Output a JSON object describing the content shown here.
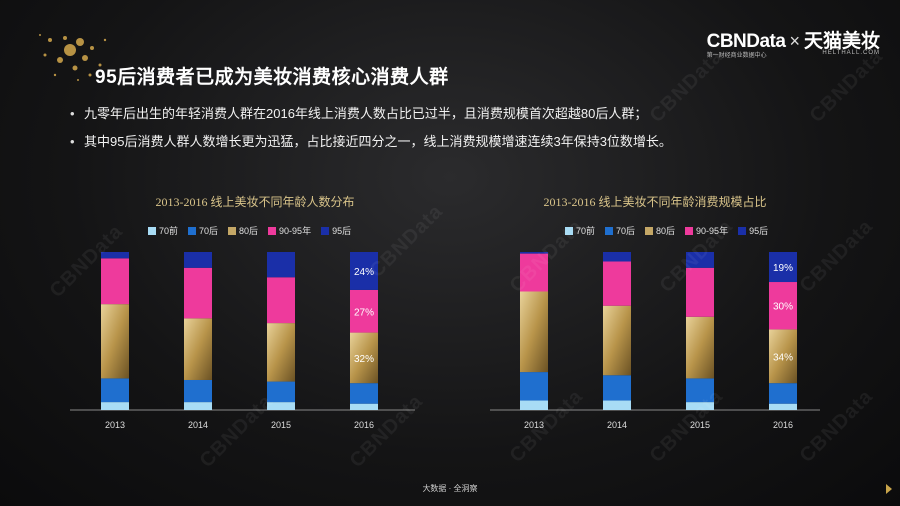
{
  "title": "95后消费者已成为美妆消费核心消费人群",
  "brand": {
    "cbn": "CBNData",
    "x": "×",
    "tmall": "天猫美妆",
    "cbn_sub": "第一财经商业数据中心",
    "tmall_sub": "HELTHALL.COM"
  },
  "bullets": [
    "九零年后出生的年轻消费人群在2016年线上消费人数占比已过半，且消费规模首次超越80后人群；",
    "其中95后消费人群人数增长更为迅猛，占比接近四分之一，线上消费规模增速连续3年保持3位数增长。"
  ],
  "watermark": "CBNData",
  "footer": "大数据 · 全洞察",
  "colors": {
    "70前": "#a8dcf5",
    "70后": "#1f6fcf",
    "80后": "#c4a766",
    "90-95年": "#ee3a9c",
    "95后": "#1a2fa8",
    "accent_gold": "#d9c48a"
  },
  "chart_data": [
    {
      "type": "bar",
      "stacked": true,
      "title": "2013-2016 线上美妆不同年龄人数分布",
      "categories": [
        "2013",
        "2014",
        "2015",
        "2016"
      ],
      "legend": [
        "70前",
        "70后",
        "80后",
        "90-95年",
        "95后"
      ],
      "series": [
        {
          "name": "70前",
          "values": [
            0.05,
            0.05,
            0.05,
            0.04
          ]
        },
        {
          "name": "70后",
          "values": [
            0.15,
            0.14,
            0.13,
            0.13
          ]
        },
        {
          "name": "80后",
          "values": [
            0.47,
            0.39,
            0.37,
            0.32
          ]
        },
        {
          "name": "90-95年",
          "values": [
            0.29,
            0.32,
            0.29,
            0.27
          ]
        },
        {
          "name": "95后",
          "values": [
            0.04,
            0.1,
            0.16,
            0.24
          ]
        }
      ],
      "data_labels": {
        "2016": {
          "80后": "32%",
          "90-95年": "27%",
          "95后": "24%"
        }
      },
      "ylim": [
        0,
        1
      ]
    },
    {
      "type": "bar",
      "stacked": true,
      "title": "2013-2016 线上美妆不同年龄消费规模占比",
      "categories": [
        "2013",
        "2014",
        "2015",
        "2016"
      ],
      "legend": [
        "70前",
        "70后",
        "80后",
        "90-95年",
        "95后"
      ],
      "series": [
        {
          "name": "70前",
          "values": [
            0.06,
            0.06,
            0.05,
            0.04
          ]
        },
        {
          "name": "70后",
          "values": [
            0.18,
            0.16,
            0.15,
            0.13
          ]
        },
        {
          "name": "80后",
          "values": [
            0.51,
            0.44,
            0.39,
            0.34
          ]
        },
        {
          "name": "90-95年",
          "values": [
            0.24,
            0.28,
            0.31,
            0.3
          ]
        },
        {
          "name": "95后",
          "values": [
            0.01,
            0.06,
            0.1,
            0.19
          ]
        }
      ],
      "data_labels": {
        "2016": {
          "80后": "34%",
          "90-95年": "30%",
          "95后": "19%"
        }
      },
      "ylim": [
        0,
        1
      ]
    }
  ]
}
